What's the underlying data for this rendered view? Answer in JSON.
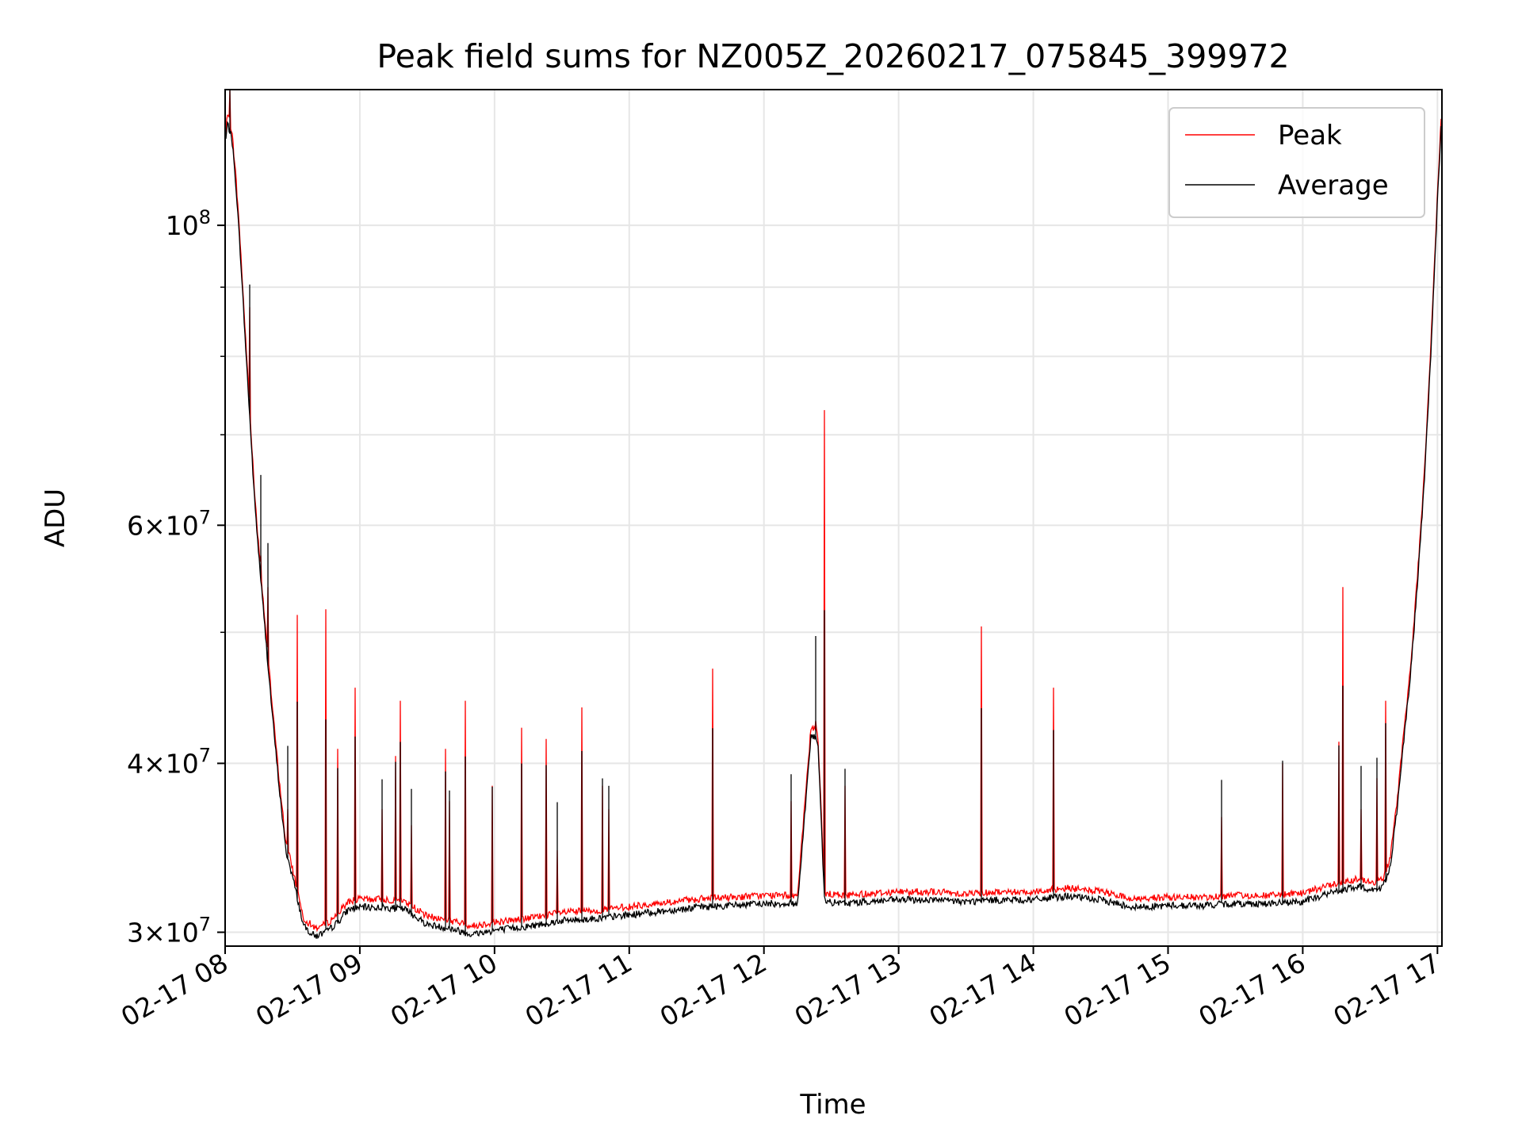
{
  "chart_data": {
    "type": "line",
    "title": "Peak field sums for NZ005Z_20260217_075845_399972",
    "xlabel": "Time",
    "ylabel": "ADU",
    "yscale": "log",
    "ylim": [
      29300000,
      126000000
    ],
    "xlim": [
      "2026-02-17 08:00",
      "2026-02-17 17:02"
    ],
    "grid": true,
    "legend_position": "top-right",
    "x_ticks": [
      "02-17 08",
      "02-17 09",
      "02-17 10",
      "02-17 11",
      "02-17 12",
      "02-17 13",
      "02-17 14",
      "02-17 15",
      "02-17 16",
      "02-17 17"
    ],
    "y_ticks": [
      {
        "value": 30000000,
        "mantissa": "3",
        "exp": "7"
      },
      {
        "value": 40000000,
        "mantissa": "4",
        "exp": "7"
      },
      {
        "value": 60000000,
        "mantissa": "6",
        "exp": "7"
      },
      {
        "value": 100000000,
        "mantissa": "",
        "exp": "8"
      }
    ],
    "y_minor_ticks": [
      50000000,
      70000000,
      80000000,
      90000000
    ],
    "series": [
      {
        "name": "Average",
        "color": "#000000",
        "x": [
          "2026-02-17 08:00",
          "2026-02-17 08:01",
          "2026-02-17 08:03",
          "2026-02-17 08:05",
          "2026-02-17 08:07",
          "2026-02-17 08:09",
          "2026-02-17 08:11",
          "2026-02-17 08:13",
          "2026-02-17 08:15",
          "2026-02-17 08:17",
          "2026-02-17 08:19",
          "2026-02-17 08:21",
          "2026-02-17 08:24",
          "2026-02-17 08:27",
          "2026-02-17 08:30",
          "2026-02-17 08:35",
          "2026-02-17 08:40",
          "2026-02-17 08:45",
          "2026-02-17 08:50",
          "2026-02-17 08:55",
          "2026-02-17 09:00",
          "2026-02-17 09:10",
          "2026-02-17 09:20",
          "2026-02-17 09:30",
          "2026-02-17 09:40",
          "2026-02-17 09:50",
          "2026-02-17 10:00",
          "2026-02-17 10:15",
          "2026-02-17 10:30",
          "2026-02-17 10:45",
          "2026-02-17 11:00",
          "2026-02-17 11:15",
          "2026-02-17 11:30",
          "2026-02-17 11:45",
          "2026-02-17 12:00",
          "2026-02-17 12:15",
          "2026-02-17 12:21",
          "2026-02-17 12:24",
          "2026-02-17 12:27",
          "2026-02-17 12:35",
          "2026-02-17 12:45",
          "2026-02-17 13:00",
          "2026-02-17 13:15",
          "2026-02-17 13:30",
          "2026-02-17 13:45",
          "2026-02-17 14:00",
          "2026-02-17 14:15",
          "2026-02-17 14:30",
          "2026-02-17 14:45",
          "2026-02-17 15:00",
          "2026-02-17 15:15",
          "2026-02-17 15:30",
          "2026-02-17 15:45",
          "2026-02-17 16:00",
          "2026-02-17 16:10",
          "2026-02-17 16:20",
          "2026-02-17 16:25",
          "2026-02-17 16:30",
          "2026-02-17 16:33",
          "2026-02-17 16:36",
          "2026-02-17 16:39",
          "2026-02-17 16:42",
          "2026-02-17 16:45",
          "2026-02-17 16:48",
          "2026-02-17 16:51",
          "2026-02-17 16:54",
          "2026-02-17 16:57",
          "2026-02-17 17:00",
          "2026-02-17 17:02"
        ],
        "values": [
          114000000,
          119000000,
          116000000,
          106000000,
          94000000,
          82000000,
          72000000,
          63000000,
          57000000,
          52000000,
          47500000,
          43500000,
          38500000,
          34500000,
          33000000,
          30300000,
          29800000,
          30000000,
          30500000,
          31200000,
          31300000,
          31300000,
          31200000,
          30400000,
          30200000,
          29900000,
          30100000,
          30300000,
          30600000,
          30700000,
          30900000,
          31100000,
          31300000,
          31400000,
          31500000,
          31500000,
          42000000,
          41600000,
          31600000,
          31500000,
          31600000,
          31700000,
          31700000,
          31600000,
          31700000,
          31700000,
          31900000,
          31700000,
          31300000,
          31400000,
          31400000,
          31500000,
          31500000,
          31600000,
          32000000,
          32300000,
          32400000,
          32300000,
          32200000,
          32500000,
          33600000,
          37000000,
          41500000,
          46500000,
          54000000,
          64000000,
          80000000,
          104000000,
          122000000
        ]
      },
      {
        "name": "Peak",
        "color": "#ff0000",
        "spikes": [
          {
            "x": "2026-02-17 08:02",
            "value": 126000000
          },
          {
            "x": "2026-02-17 08:11",
            "value": 87000000
          },
          {
            "x": "2026-02-17 08:16",
            "value": 57000000
          },
          {
            "x": "2026-02-17 08:19",
            "value": 54000000
          },
          {
            "x": "2026-02-17 08:28",
            "value": 37000000
          },
          {
            "x": "2026-02-17 08:32",
            "value": 51500000
          },
          {
            "x": "2026-02-17 08:45",
            "value": 52000000
          },
          {
            "x": "2026-02-17 08:50",
            "value": 41000000
          },
          {
            "x": "2026-02-17 08:58",
            "value": 45500000
          },
          {
            "x": "2026-02-17 09:10",
            "value": 37000000
          },
          {
            "x": "2026-02-17 09:16",
            "value": 40500000
          },
          {
            "x": "2026-02-17 09:18",
            "value": 44500000
          },
          {
            "x": "2026-02-17 09:23",
            "value": 36000000
          },
          {
            "x": "2026-02-17 09:38",
            "value": 41000000
          },
          {
            "x": "2026-02-17 09:40",
            "value": 37500000
          },
          {
            "x": "2026-02-17 09:47",
            "value": 44500000
          },
          {
            "x": "2026-02-17 09:59",
            "value": 38500000
          },
          {
            "x": "2026-02-17 10:12",
            "value": 42500000
          },
          {
            "x": "2026-02-17 10:23",
            "value": 41700000
          },
          {
            "x": "2026-02-17 10:28",
            "value": 34500000
          },
          {
            "x": "2026-02-17 10:39",
            "value": 44000000
          },
          {
            "x": "2026-02-17 10:48",
            "value": 38500000
          },
          {
            "x": "2026-02-17 10:51",
            "value": 37000000
          },
          {
            "x": "2026-02-17 11:37",
            "value": 47000000
          },
          {
            "x": "2026-02-17 12:12",
            "value": 37500000
          },
          {
            "x": "2026-02-17 12:23",
            "value": 43000000
          },
          {
            "x": "2026-02-17 12:27",
            "value": 73000000
          },
          {
            "x": "2026-02-17 12:36",
            "value": 38500000
          },
          {
            "x": "2026-02-17 13:37",
            "value": 50500000
          },
          {
            "x": "2026-02-17 14:09",
            "value": 45500000
          },
          {
            "x": "2026-02-17 15:24",
            "value": 36500000
          },
          {
            "x": "2026-02-17 15:51",
            "value": 40000000
          },
          {
            "x": "2026-02-17 16:16",
            "value": 41500000
          },
          {
            "x": "2026-02-17 16:18",
            "value": 54000000
          },
          {
            "x": "2026-02-17 16:26",
            "value": 37000000
          },
          {
            "x": "2026-02-17 16:33",
            "value": 39000000
          },
          {
            "x": "2026-02-17 16:37",
            "value": 44500000
          }
        ]
      }
    ]
  }
}
